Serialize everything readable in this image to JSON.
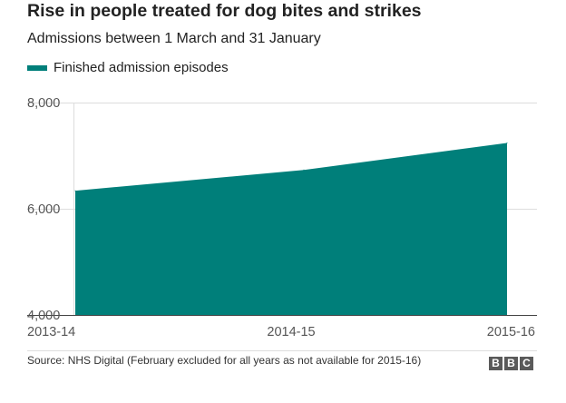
{
  "header": {
    "title": "Rise in people treated for dog bites and strikes",
    "subtitle": "Admissions between 1 March and 31 January"
  },
  "chart_data": {
    "type": "area",
    "categories": [
      "2013-14",
      "2014-15",
      "2015-16"
    ],
    "series": [
      {
        "name": "Finished admission episodes",
        "values": [
          6340,
          6730,
          7240
        ],
        "color": "#007f7a"
      }
    ],
    "ylim": [
      4000,
      8000
    ],
    "yticks": [
      4000,
      6000,
      8000
    ],
    "ytick_labels": [
      "4,000",
      "6,000",
      "8,000"
    ],
    "grid": true,
    "legend": "top-left"
  },
  "footer": {
    "source": "Source: NHS Digital (February excluded for all years as not available for 2015-16)",
    "logo_letters": [
      "B",
      "B",
      "C"
    ]
  }
}
